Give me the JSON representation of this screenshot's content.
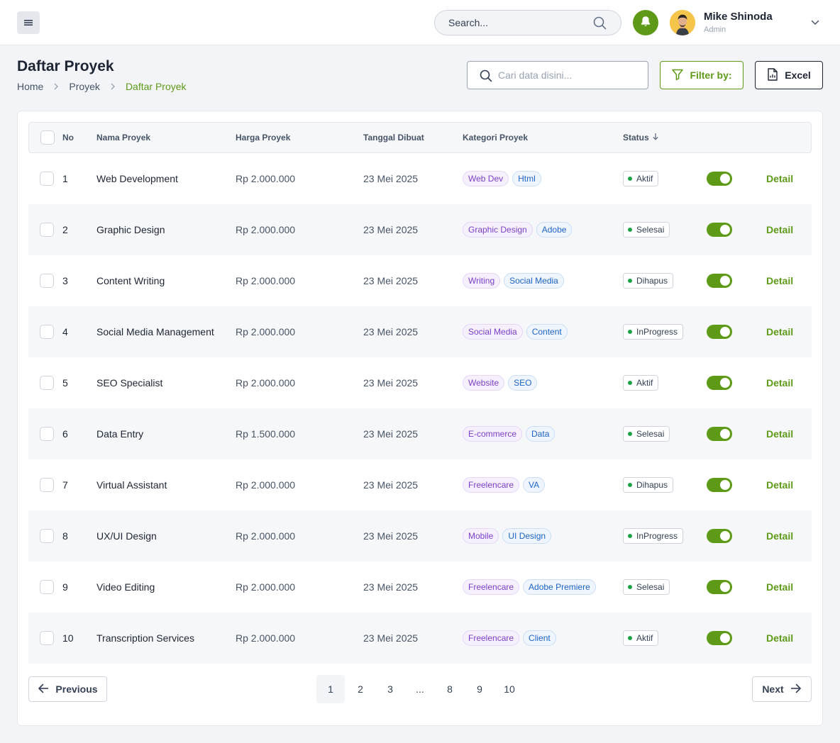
{
  "topbar": {
    "search_placeholder": "Search...",
    "user": {
      "name": "Mike Shinoda",
      "role": "Admin"
    }
  },
  "header": {
    "title": "Daftar Proyek",
    "breadcrumb": [
      "Home",
      "Proyek",
      "Daftar Proyek"
    ],
    "data_search_placeholder": "Cari data disini...",
    "filter_label": "Filter by:",
    "excel_label": "Excel"
  },
  "table": {
    "columns": [
      "No",
      "Nama Proyek",
      "Harga Proyek",
      "Tanggal Dibuat",
      "Kategori Proyek",
      "Status"
    ],
    "detail_label": "Detail",
    "rows": [
      {
        "no": "1",
        "name": "Web Development",
        "price": "Rp 2.000.000",
        "date": "23 Mei 2025",
        "cat1": "Web Dev",
        "cat2": "Html",
        "status": "Aktif",
        "enabled": true
      },
      {
        "no": "2",
        "name": "Graphic Design",
        "price": "Rp 2.000.000",
        "date": "23 Mei 2025",
        "cat1": "Graphic Design",
        "cat2": "Adobe",
        "status": "Selesai",
        "enabled": true
      },
      {
        "no": "3",
        "name": "Content Writing",
        "price": "Rp 2.000.000",
        "date": "23 Mei 2025",
        "cat1": "Writing",
        "cat2": "Social Media",
        "status": "Dihapus",
        "enabled": true
      },
      {
        "no": "4",
        "name": "Social Media Management",
        "price": "Rp 2.000.000",
        "date": "23 Mei 2025",
        "cat1": "Social Media",
        "cat2": "Content",
        "status": "InProgress",
        "enabled": true
      },
      {
        "no": "5",
        "name": "SEO Specialist",
        "price": "Rp 2.000.000",
        "date": "23 Mei 2025",
        "cat1": "Website",
        "cat2": "SEO",
        "status": "Aktif",
        "enabled": true
      },
      {
        "no": "6",
        "name": "Data Entry",
        "price": "Rp 1.500.000",
        "date": "23 Mei 2025",
        "cat1": "E-commerce",
        "cat2": "Data",
        "status": "Selesai",
        "enabled": true
      },
      {
        "no": "7",
        "name": "Virtual Assistant",
        "price": "Rp 2.000.000",
        "date": "23 Mei 2025",
        "cat1": "Freelencare",
        "cat2": "VA",
        "status": "Dihapus",
        "enabled": true
      },
      {
        "no": "8",
        "name": "UX/UI Design",
        "price": "Rp 2.000.000",
        "date": "23 Mei 2025",
        "cat1": "Mobile",
        "cat2": "UI Design",
        "status": "InProgress",
        "enabled": true
      },
      {
        "no": "9",
        "name": "Video Editing",
        "price": "Rp 2.000.000",
        "date": "23 Mei 2025",
        "cat1": "Freelencare",
        "cat2": "Adobe Premiere",
        "status": "Selesai",
        "enabled": true
      },
      {
        "no": "10",
        "name": "Transcription Services",
        "price": "Rp 2.000.000",
        "date": "23 Mei 2025",
        "cat1": "Freelencare",
        "cat2": "Client",
        "status": "Aktif",
        "enabled": true
      }
    ]
  },
  "pagination": {
    "previous_label": "Previous",
    "next_label": "Next",
    "pages": [
      "1",
      "2",
      "3",
      "...",
      "8",
      "9",
      "10"
    ],
    "current_page": "1"
  },
  "colors": {
    "accent": "#5e9a17",
    "status_dot": "#1aa34a",
    "tag_primary": "#7b3fc8",
    "tag_secondary": "#1f63c4"
  }
}
